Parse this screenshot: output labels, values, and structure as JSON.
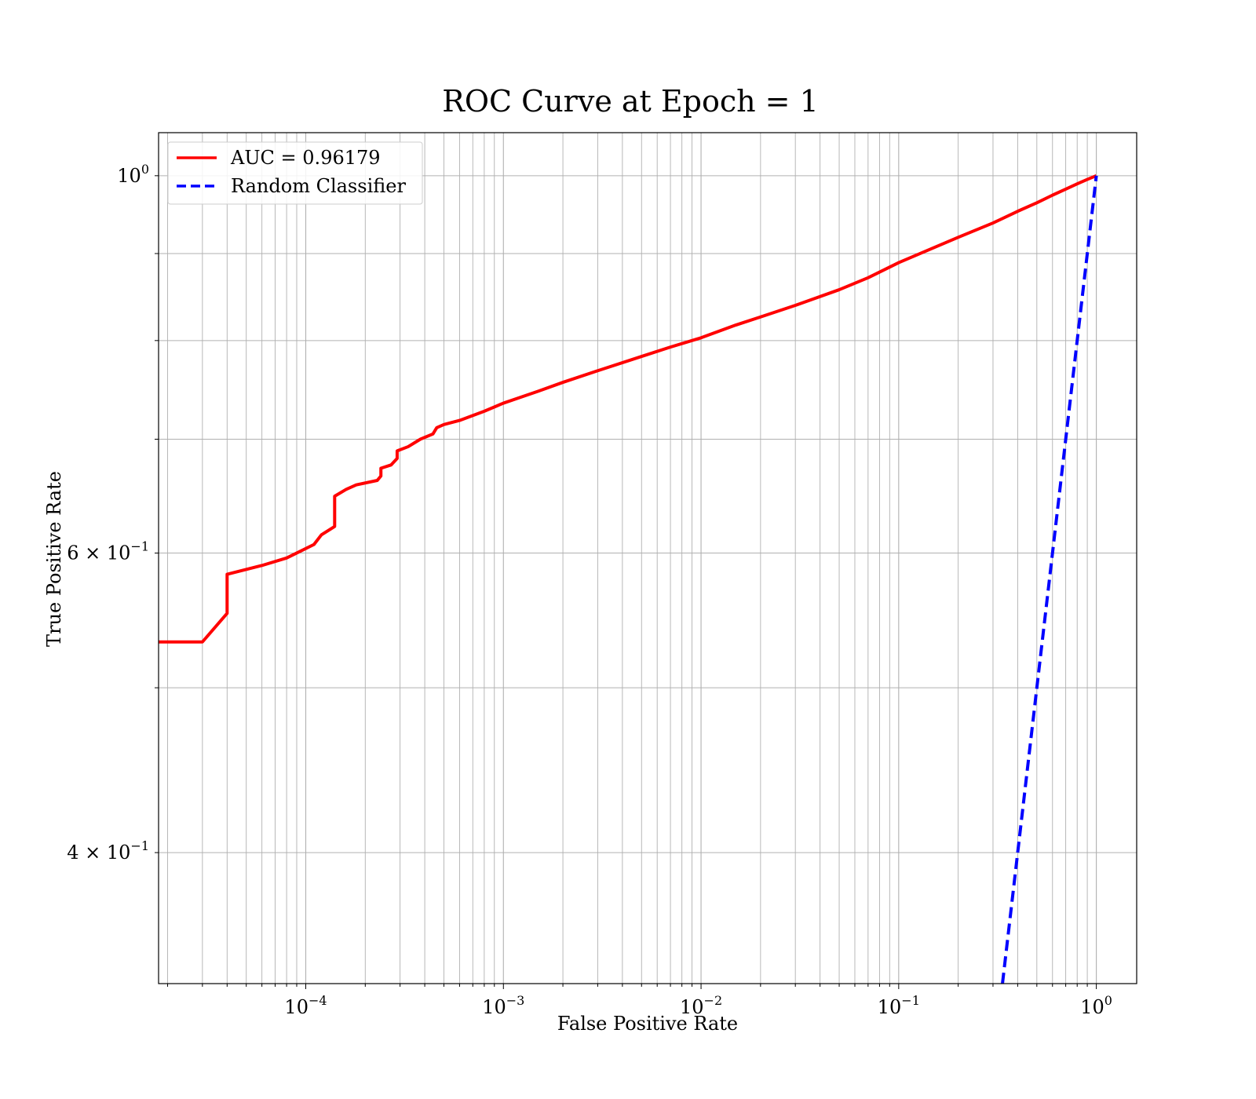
{
  "chart_data": {
    "type": "line",
    "title": "ROC Curve at Epoch = 1",
    "xlabel": "False Positive Rate",
    "ylabel": "True Positive Rate",
    "xscale": "log",
    "yscale": "log",
    "xlim": [
      1.8e-05,
      1.6
    ],
    "ylim": [
      0.335,
      1.06
    ],
    "grid": true,
    "legend_position": "top-left",
    "x_ticks": [
      {
        "base": "10",
        "exp": "−4",
        "value": 0.0001
      },
      {
        "base": "10",
        "exp": "−3",
        "value": 0.001
      },
      {
        "base": "10",
        "exp": "−2",
        "value": 0.01
      },
      {
        "base": "10",
        "exp": "−1",
        "value": 0.1
      },
      {
        "base": "10",
        "exp": "0",
        "value": 1
      }
    ],
    "y_ticks": [
      {
        "mant": "",
        "base": "10",
        "exp": "0",
        "value": 1.0
      },
      {
        "mant": "6 × ",
        "base": "10",
        "exp": "−1",
        "value": 0.6
      },
      {
        "mant": "4 × ",
        "base": "10",
        "exp": "−1",
        "value": 0.4
      }
    ],
    "series": [
      {
        "name": "AUC = 0.96179",
        "color": "#ff0000",
        "style": "solid",
        "x": [
          1.8e-05,
          3e-05,
          4e-05,
          4e-05,
          6e-05,
          8e-05,
          0.00011,
          0.00012,
          0.00014,
          0.00014,
          0.00016,
          0.00018,
          0.00023,
          0.00024,
          0.00024,
          0.00027,
          0.00029,
          0.00029,
          0.00033,
          0.00038,
          0.00044,
          0.00046,
          0.0005,
          0.0006,
          0.0008,
          0.001,
          0.0015,
          0.002,
          0.003,
          0.005,
          0.007,
          0.01,
          0.015,
          0.02,
          0.03,
          0.05,
          0.07,
          0.1,
          0.15,
          0.2,
          0.3,
          0.4,
          0.5,
          0.6,
          0.7,
          0.8,
          0.9,
          1.0
        ],
        "y": [
          0.532,
          0.532,
          0.553,
          0.583,
          0.59,
          0.596,
          0.607,
          0.615,
          0.622,
          0.648,
          0.654,
          0.658,
          0.662,
          0.666,
          0.673,
          0.676,
          0.682,
          0.689,
          0.693,
          0.7,
          0.705,
          0.711,
          0.714,
          0.718,
          0.727,
          0.735,
          0.747,
          0.756,
          0.768,
          0.783,
          0.793,
          0.803,
          0.817,
          0.826,
          0.839,
          0.857,
          0.871,
          0.889,
          0.907,
          0.92,
          0.938,
          0.953,
          0.964,
          0.974,
          0.982,
          0.989,
          0.995,
          1.0
        ]
      },
      {
        "name": "Random Classifier",
        "color": "#0000ff",
        "style": "dashed",
        "x": [
          0.335,
          1.0
        ],
        "y": [
          0.335,
          1.0
        ]
      }
    ]
  }
}
